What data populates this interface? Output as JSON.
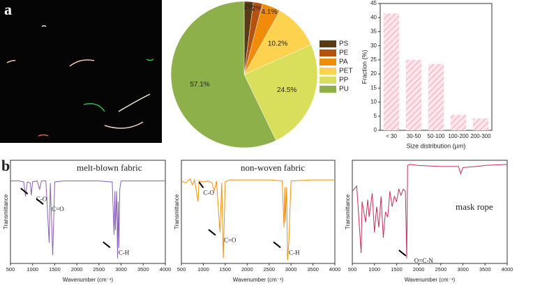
{
  "panel_labels": [
    "a",
    "b"
  ],
  "chart_data": [
    {
      "type": "pie",
      "categories": [
        "PS",
        "PE",
        "PA",
        "PET",
        "PP",
        "PU"
      ],
      "values": [
        2,
        2,
        4.1,
        10.2,
        24.5,
        57.1
      ],
      "value_labels": [
        "2%",
        "2%",
        "4.1%",
        "10.2%",
        "24.5%",
        "57.1%"
      ],
      "colors": [
        "#5a3a12",
        "#b5520e",
        "#f08c0a",
        "#fdd24f",
        "#d9df5a",
        "#8db04a"
      ]
    },
    {
      "type": "bar",
      "categories": [
        "< 30",
        "30-50",
        "50-100",
        "100-200",
        "200-300"
      ],
      "values": [
        41.5,
        25,
        23.5,
        5.5,
        4.2
      ],
      "color": "#f7b8c6",
      "ylim": [
        0,
        45
      ],
      "yticks": [
        0,
        5,
        10,
        15,
        20,
        25,
        30,
        35,
        40,
        45
      ],
      "ylabel": "Fraction (%)",
      "xlabel": "Size distribution (μm)"
    },
    {
      "type": "line",
      "title": "melt-blown fabric",
      "color": "#8a5db5",
      "x": [
        500,
        700,
        800,
        840,
        880,
        950,
        970,
        1000,
        1100,
        1160,
        1200,
        1300,
        1375,
        1400,
        1455,
        1500,
        1700,
        2000,
        2500,
        2800,
        2840,
        2860,
        2870,
        2900,
        2920,
        2935,
        2950,
        2970,
        3000,
        3500,
        4000
      ],
      "values": [
        80,
        80,
        79,
        65,
        79,
        78,
        66,
        79,
        80,
        72,
        80,
        80,
        20,
        78,
        8,
        79,
        80,
        80,
        80,
        79,
        28,
        70,
        32,
        70,
        5,
        60,
        15,
        72,
        80,
        80,
        80
      ],
      "annotations": [
        "C-O",
        "C=O",
        "C-H"
      ],
      "xlim": [
        500,
        4000
      ],
      "xticks": [
        500,
        1000,
        1500,
        2000,
        2500,
        3000,
        3500,
        4000
      ],
      "ylim": [
        0,
        100
      ],
      "xlabel": "Wavenumber (cm⁻¹)",
      "ylabel": "Transmittance"
    },
    {
      "type": "line",
      "title": "non-woven fabric",
      "color": "#f0900a",
      "x": [
        500,
        600,
        700,
        750,
        800,
        880,
        900,
        1000,
        1100,
        1200,
        1250,
        1300,
        1380,
        1420,
        1455,
        1500,
        1600,
        2000,
        2500,
        2800,
        2840,
        2860,
        2870,
        2900,
        2920,
        2950,
        3000,
        3500,
        4000
      ],
      "values": [
        80,
        78,
        82,
        76,
        81,
        60,
        80,
        79,
        80,
        78,
        70,
        80,
        30,
        78,
        5,
        79,
        81,
        81,
        81,
        80,
        35,
        74,
        40,
        74,
        3,
        20,
        80,
        81,
        81
      ],
      "annotations": [
        "C-O",
        "C=O",
        "C-H"
      ],
      "xlim": [
        500,
        4000
      ],
      "xticks": [
        500,
        1000,
        1500,
        2000,
        2500,
        3000,
        3500,
        4000
      ],
      "ylim": [
        0,
        100
      ],
      "xlabel": "Wavenumber (cm⁻¹)",
      "ylabel": "Transmittance"
    },
    {
      "type": "line",
      "title": "mask rope",
      "color": "#c0305a",
      "x": [
        500,
        600,
        700,
        720,
        800,
        850,
        880,
        950,
        1000,
        1050,
        1100,
        1150,
        1200,
        1250,
        1300,
        1350,
        1400,
        1450,
        1500,
        1550,
        1600,
        1650,
        1700,
        1730,
        1750,
        1800,
        2000,
        2500,
        2900,
        2950,
        3000,
        3300,
        3500,
        4000
      ],
      "values": [
        70,
        75,
        10,
        60,
        40,
        62,
        45,
        68,
        30,
        55,
        35,
        65,
        25,
        50,
        45,
        70,
        55,
        65,
        60,
        72,
        66,
        72,
        70,
        5,
        95,
        96,
        95,
        94,
        94,
        87,
        93,
        94,
        95,
        96
      ],
      "annotations": [
        "O=C-N"
      ],
      "xlim": [
        500,
        4000
      ],
      "xticks": [
        500,
        1000,
        1500,
        2000,
        2500,
        3000,
        3500,
        4000
      ],
      "ylim": [
        0,
        100
      ],
      "xlabel": "Wavenumber (cm⁻¹)",
      "ylabel": "Transmittance"
    }
  ]
}
